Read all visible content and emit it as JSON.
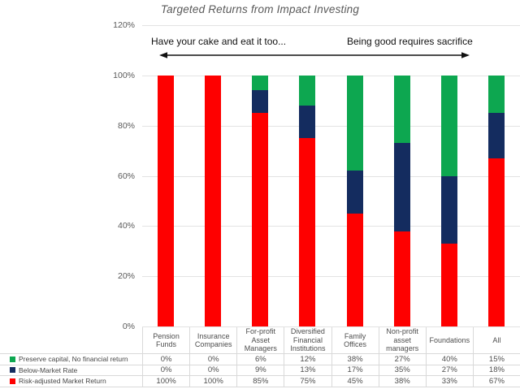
{
  "chart": {
    "title": "Targeted Returns from Impact Investing",
    "annotation_left": "Have your cake and eat it too...",
    "annotation_right": "Being good requires sacrifice"
  },
  "chart_data": {
    "type": "bar",
    "stacked": true,
    "title": "Targeted Returns from Impact Investing",
    "xlabel": "",
    "ylabel": "",
    "ylim": [
      0,
      120
    ],
    "ytick_step": 20,
    "ytick_labels": [
      "0%",
      "20%",
      "40%",
      "60%",
      "80%",
      "100%",
      "120%"
    ],
    "grid": true,
    "legend_position": "bottom-table",
    "value_suffix": "%",
    "categories": [
      "Pension Funds",
      "Insurance Companies",
      "For-profit Asset Managers",
      "Diversified Financial Institutions",
      "Family Offices",
      "Non-profit asset managers",
      "Foundations",
      "All"
    ],
    "series": [
      {
        "name": "Risk-adjusted Market Return",
        "color": "#fe0000",
        "values": [
          100,
          100,
          85,
          75,
          45,
          38,
          33,
          67
        ]
      },
      {
        "name": "Below-Market Rate",
        "color": "#142c5f",
        "values": [
          0,
          0,
          9,
          13,
          17,
          35,
          27,
          18
        ]
      },
      {
        "name": "Preserve capital, No financial return",
        "color": "#0da750",
        "values": [
          0,
          0,
          6,
          12,
          38,
          27,
          40,
          15
        ]
      }
    ],
    "annotations": [
      "Have your cake and eat it too...",
      "Being good requires sacrifice"
    ]
  }
}
